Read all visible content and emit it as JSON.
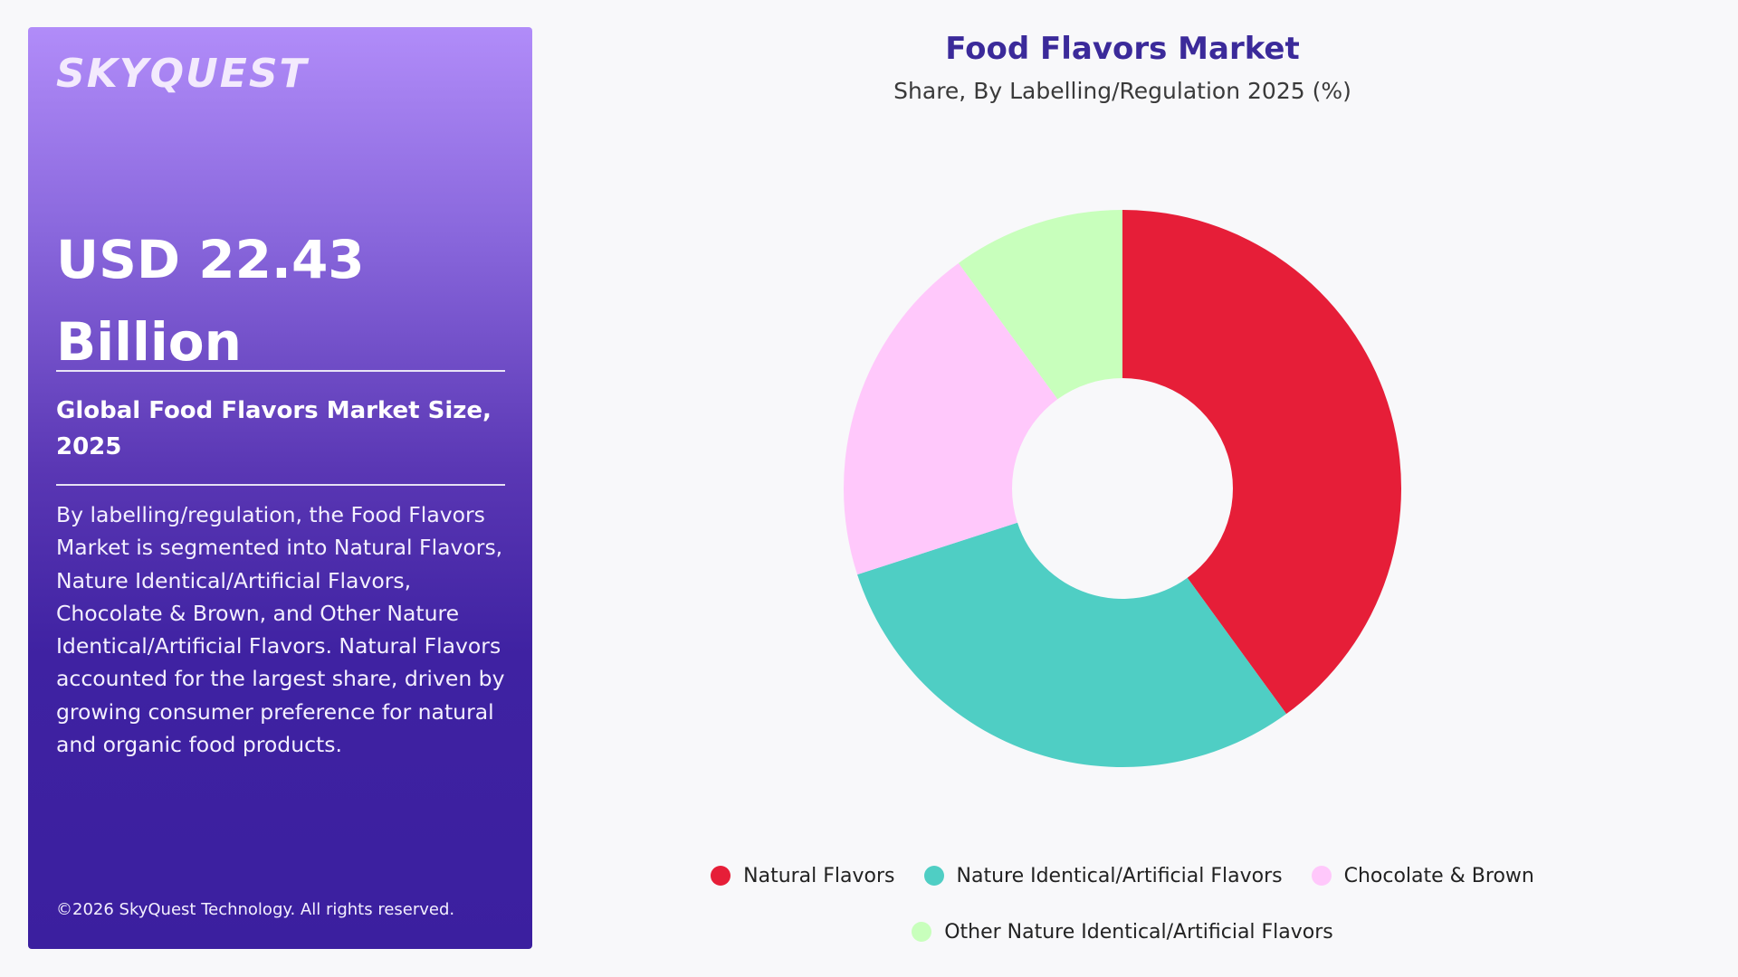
{
  "sidebar": {
    "logo_text": "SKYQUEST",
    "headline_line1": "USD 22.43",
    "headline_line2": "Billion",
    "subtitle": "Global Food Flavors Market Size, 2025",
    "description": "By labelling/regulation, the Food Flavors Market is segmented into Natural Flavors, Nature Identical/Artificial Flavors, Chocolate & Brown, and Other Nature Identical/Artificial Flavors. Natural Flavors accounted for the largest share, driven by growing consumer preference for natural and organic food products.",
    "copyright": "©2026 SkyQuest Technology. All rights reserved."
  },
  "chart_data": {
    "type": "pie",
    "donut": true,
    "title": "Food Flavors Market",
    "subtitle": "Share, By Labelling/Regulation 2025 (%)",
    "legend_position": "bottom",
    "categories": [
      "Natural Flavors",
      "Nature Identical/Artificial Flavors",
      "Chocolate & Brown",
      "Other Nature Identical/Artificial Flavors"
    ],
    "values": [
      40,
      30,
      20,
      10
    ],
    "colors": [
      "#e61e38",
      "#4fcec4",
      "#ffc8fb",
      "#c8ffbc"
    ]
  }
}
